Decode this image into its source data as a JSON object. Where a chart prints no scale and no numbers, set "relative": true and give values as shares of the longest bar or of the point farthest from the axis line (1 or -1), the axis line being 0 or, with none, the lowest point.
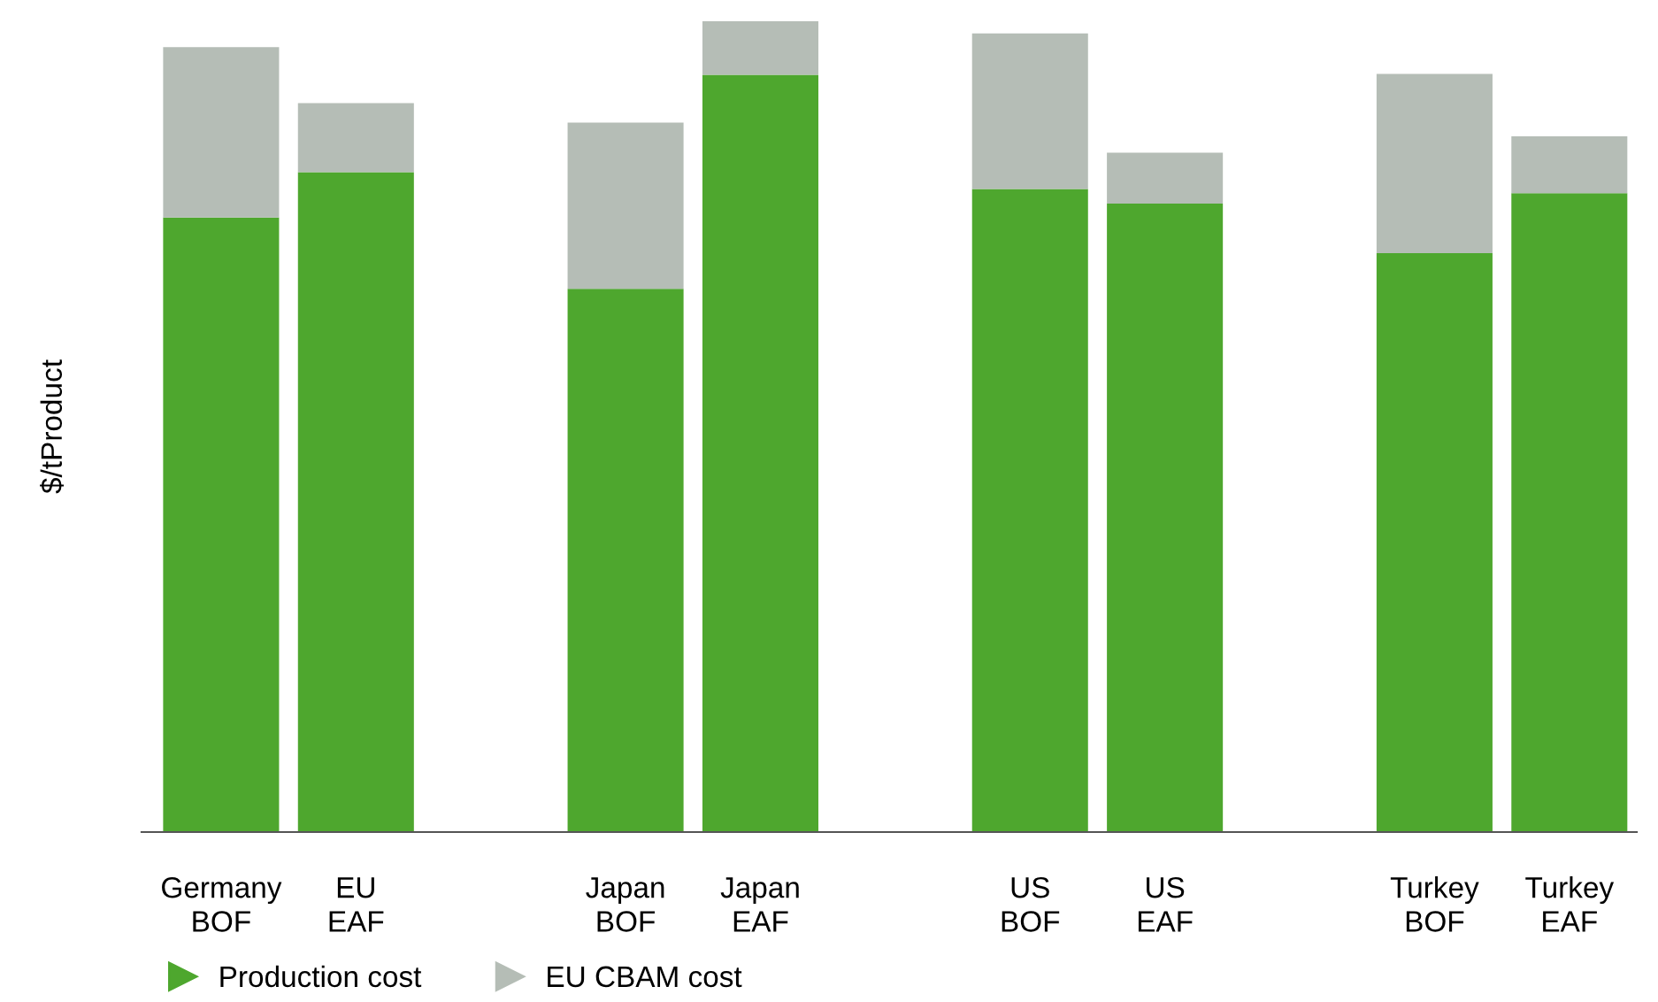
{
  "chart_data": {
    "type": "bar",
    "stacked": true,
    "relative": true,
    "ylabel": "$/tProduct",
    "legend": "bottom left",
    "grid": false,
    "categories": [
      "Germany\nBOF",
      "EU\nEAF",
      null,
      "Japan\nBOF",
      "Japan\nEAF",
      null,
      "US\nBOF",
      "US\nEAF",
      null,
      "Turkey\nBOF",
      "Turkey\nEAF"
    ],
    "series": [
      {
        "name": "Production cost",
        "color": "#4ea72e",
        "values": [
          0.758,
          0.814,
          null,
          0.67,
          0.934,
          null,
          0.793,
          0.775,
          null,
          0.714,
          0.788
        ]
      },
      {
        "name": "EU CBAM cost",
        "color": "#b5bdb6",
        "values": [
          0.21,
          0.085,
          null,
          0.205,
          0.066,
          null,
          0.192,
          0.063,
          null,
          0.221,
          0.07
        ]
      }
    ]
  }
}
